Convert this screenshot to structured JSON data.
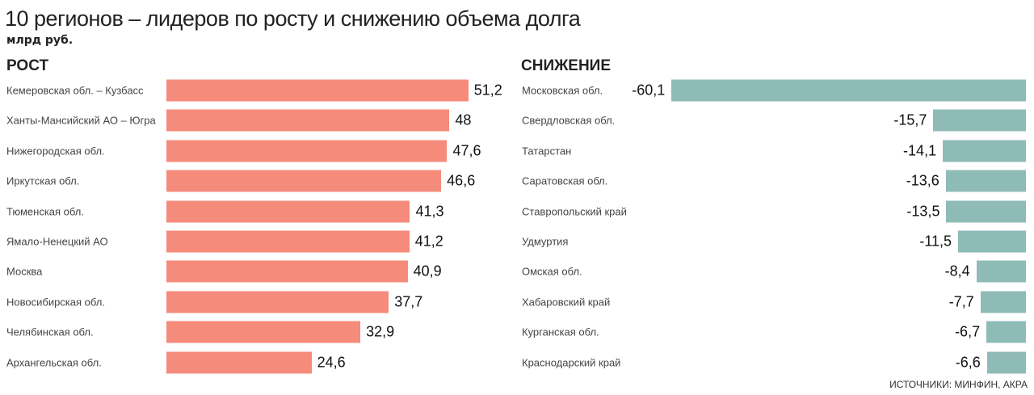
{
  "title": "10 регионов – лидеров по росту и снижению объема долга",
  "unit": "млрд руб.",
  "source": "ИСТОЧНИКИ: МИНФИН, АКРА",
  "colors": {
    "growth": "#f58b7b",
    "decline": "#8fbbb7"
  },
  "chart_data": [
    {
      "type": "bar",
      "title": "РОСТ",
      "categories": [
        "Кемеровская обл. – Кузбасс",
        "Ханты-Мансийский АО – Югра",
        "Нижегородская обл.",
        "Иркутская обл.",
        "Тюменская обл.",
        "Ямало-Ненецкий АО",
        "Москва",
        "Новосибирская обл.",
        "Челябинская обл.",
        "Архангельская обл."
      ],
      "values": [
        51.2,
        48,
        47.6,
        46.6,
        41.3,
        41.2,
        40.9,
        37.7,
        32.9,
        24.6
      ],
      "labels": [
        "51,2",
        "48",
        "47,6",
        "46,6",
        "41,3",
        "41,2",
        "40,9",
        "37,7",
        "32,9",
        "24,6"
      ]
    },
    {
      "type": "bar",
      "title": "СНИЖЕНИЕ",
      "categories": [
        "Московская обл.",
        "Свердловская обл.",
        "Татарстан",
        "Саратовская обл.",
        "Ставропольский край",
        "Удмуртия",
        "Омская обл.",
        "Хабаровский край",
        "Курганская обл.",
        "Краснодарский край"
      ],
      "values": [
        -60.1,
        -15.7,
        -14.1,
        -13.6,
        -13.5,
        -11.5,
        -8.4,
        -7.7,
        -6.7,
        -6.6
      ],
      "labels": [
        "-60,1",
        "-15,7",
        "-14,1",
        "-13,6",
        "-13,5",
        "-11,5",
        "-8,4",
        "-7,7",
        "-6,7",
        "-6,6"
      ]
    }
  ]
}
